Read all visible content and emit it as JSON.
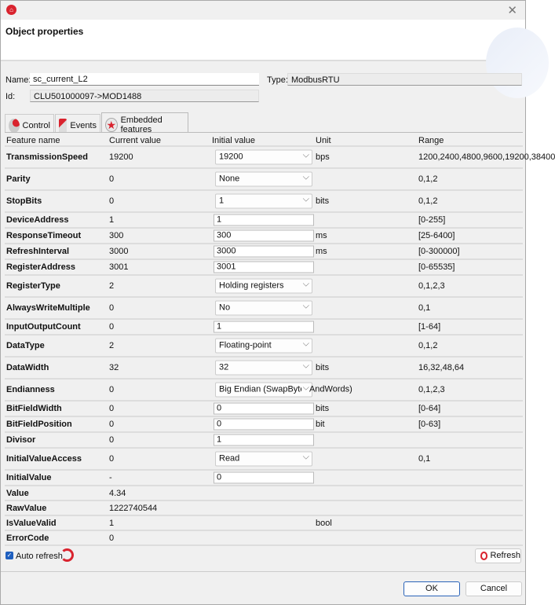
{
  "window": {
    "title": "Object properties",
    "close": "✕"
  },
  "object": {
    "name_label": "Name:",
    "name": "sc_current_L2",
    "type_label": "Type:",
    "type": "ModbusRTU",
    "id_label": "Id:",
    "id": "CLU501000097->MOD1488"
  },
  "tabs": [
    {
      "label": "Control"
    },
    {
      "label": "Events"
    },
    {
      "label": "Embedded features",
      "active": true
    }
  ],
  "columns": [
    "Feature name",
    "Current value",
    "Initial value",
    "Unit",
    "Range"
  ],
  "rows": [
    {
      "name": "TransmissionSpeed",
      "current": "19200",
      "initial": "19200",
      "kind": "select",
      "unit": "bps",
      "range": "1200,2400,4800,9600,19200,38400"
    },
    {
      "name": "Parity",
      "current": "0",
      "initial": "None",
      "kind": "select",
      "unit": "",
      "range": "0,1,2"
    },
    {
      "name": "StopBits",
      "current": "0",
      "initial": "1",
      "kind": "select",
      "unit": "bits",
      "range": "0,1,2"
    },
    {
      "name": "DeviceAddress",
      "current": "1",
      "initial": "1",
      "kind": "input",
      "unit": "",
      "range": "[0-255]"
    },
    {
      "name": "ResponseTimeout",
      "current": "300",
      "initial": "300",
      "kind": "input",
      "unit": "ms",
      "range": "[25-6400]"
    },
    {
      "name": "RefreshInterval",
      "current": "3000",
      "initial": "3000",
      "kind": "input",
      "unit": "ms",
      "range": "[0-300000]"
    },
    {
      "name": "RegisterAddress",
      "current": "3001",
      "initial": "3001",
      "kind": "input",
      "unit": "",
      "range": "[0-65535]"
    },
    {
      "name": "RegisterType",
      "current": "2",
      "initial": "Holding registers",
      "kind": "select",
      "unit": "",
      "range": "0,1,2,3"
    },
    {
      "name": "AlwaysWriteMultiple",
      "current": "0",
      "initial": "No",
      "kind": "select",
      "unit": "",
      "range": "0,1"
    },
    {
      "name": "InputOutputCount",
      "current": "0",
      "initial": "1",
      "kind": "input",
      "unit": "",
      "range": "[1-64]"
    },
    {
      "name": "DataType",
      "current": "2",
      "initial": "Floating-point",
      "kind": "select",
      "unit": "",
      "range": "0,1,2"
    },
    {
      "name": "DataWidth",
      "current": "32",
      "initial": "32",
      "kind": "select",
      "unit": "bits",
      "range": "16,32,48,64"
    },
    {
      "name": "Endianness",
      "current": "0",
      "initial": "Big Endian (SwapBytesAndWords)",
      "kind": "select",
      "unit": "",
      "range": "0,1,2,3"
    },
    {
      "name": "BitFieldWidth",
      "current": "0",
      "initial": "0",
      "kind": "input",
      "unit": "bits",
      "range": "[0-64]"
    },
    {
      "name": "BitFieldPosition",
      "current": "0",
      "initial": "0",
      "kind": "input",
      "unit": "bit",
      "range": "[0-63]"
    },
    {
      "name": "Divisor",
      "current": "0",
      "initial": "1",
      "kind": "input",
      "unit": "",
      "range": ""
    },
    {
      "name": "InitialValueAccess",
      "current": "0",
      "initial": "Read",
      "kind": "select",
      "unit": "",
      "range": "0,1"
    },
    {
      "name": "InitialValue",
      "current": "-",
      "initial": "0",
      "kind": "input",
      "unit": "",
      "range": ""
    },
    {
      "name": "Value",
      "current": "4.34",
      "initial": "",
      "kind": "plain",
      "unit": "",
      "range": ""
    },
    {
      "name": "RawValue",
      "current": "1222740544",
      "initial": "",
      "kind": "plain",
      "unit": "",
      "range": ""
    },
    {
      "name": "IsValueValid",
      "current": "1",
      "initial": "",
      "kind": "plain",
      "unit": "bool",
      "range": ""
    },
    {
      "name": "ErrorCode",
      "current": "0",
      "initial": "",
      "kind": "plain",
      "unit": "",
      "range": ""
    }
  ],
  "footer": {
    "auto_refresh": "Auto refresh",
    "auto_refresh_checked": true,
    "refresh": "Refresh",
    "ok": "OK",
    "cancel": "Cancel"
  },
  "colors": {
    "accent": "#d9232e",
    "checkbox": "#1f5fbf"
  }
}
